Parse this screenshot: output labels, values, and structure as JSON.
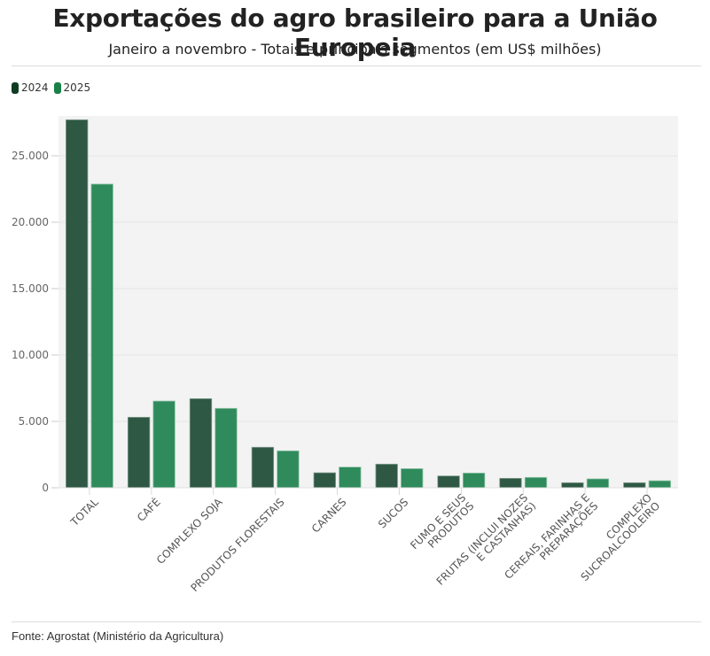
{
  "header": {
    "title": "Exportações do agro brasileiro para a União Europeia",
    "subtitle": "Janeiro a novembro - Totais e principais segmentos (em US$ milhões)"
  },
  "legend": [
    {
      "label": "2024",
      "color": "#0f3d24"
    },
    {
      "label": "2025",
      "color": "#1b8048"
    }
  ],
  "footer": {
    "source": "Fonte: Agrostat (Ministério da Agricultura)"
  },
  "chart_data": {
    "type": "bar",
    "title": "Exportações do agro brasileiro para a União Europeia",
    "subtitle": "Janeiro a novembro - Totais e principais segmentos (em US$ milhões)",
    "xlabel": "",
    "ylabel": "",
    "ylim": [
      0,
      28000
    ],
    "yticks": [
      0,
      5000,
      10000,
      15000,
      20000,
      25000
    ],
    "ytick_labels": [
      "0",
      "5.000",
      "10.000",
      "15.000",
      "20.000",
      "25.000"
    ],
    "grid": true,
    "legend_position": "top-left",
    "categories": [
      [
        "TOTAL"
      ],
      [
        "CAFÉ"
      ],
      [
        "COMPLEXO SOJA"
      ],
      [
        "PRODUTOS FLORESTAIS"
      ],
      [
        "CARNES"
      ],
      [
        "SUCOS"
      ],
      [
        "FUMO E SEUS",
        "PRODUTOS"
      ],
      [
        "FRUTAS (INCLUI NOZES",
        "E CASTANHAS)"
      ],
      [
        "CEREAIS, FARINHAS E",
        "PREPARAÇÕES"
      ],
      [
        "COMPLEXO",
        "SUCROALCOOLEIRO"
      ]
    ],
    "series": [
      {
        "name": "2024",
        "color": "#2e5844",
        "values": [
          27710,
          5310,
          6710,
          3050,
          1130,
          1780,
          890,
          710,
          380,
          380
        ]
      },
      {
        "name": "2025",
        "color": "#2f8b5c",
        "values": [
          22870,
          6530,
          5980,
          2780,
          1560,
          1440,
          1110,
          780,
          670,
          530
        ]
      }
    ]
  }
}
